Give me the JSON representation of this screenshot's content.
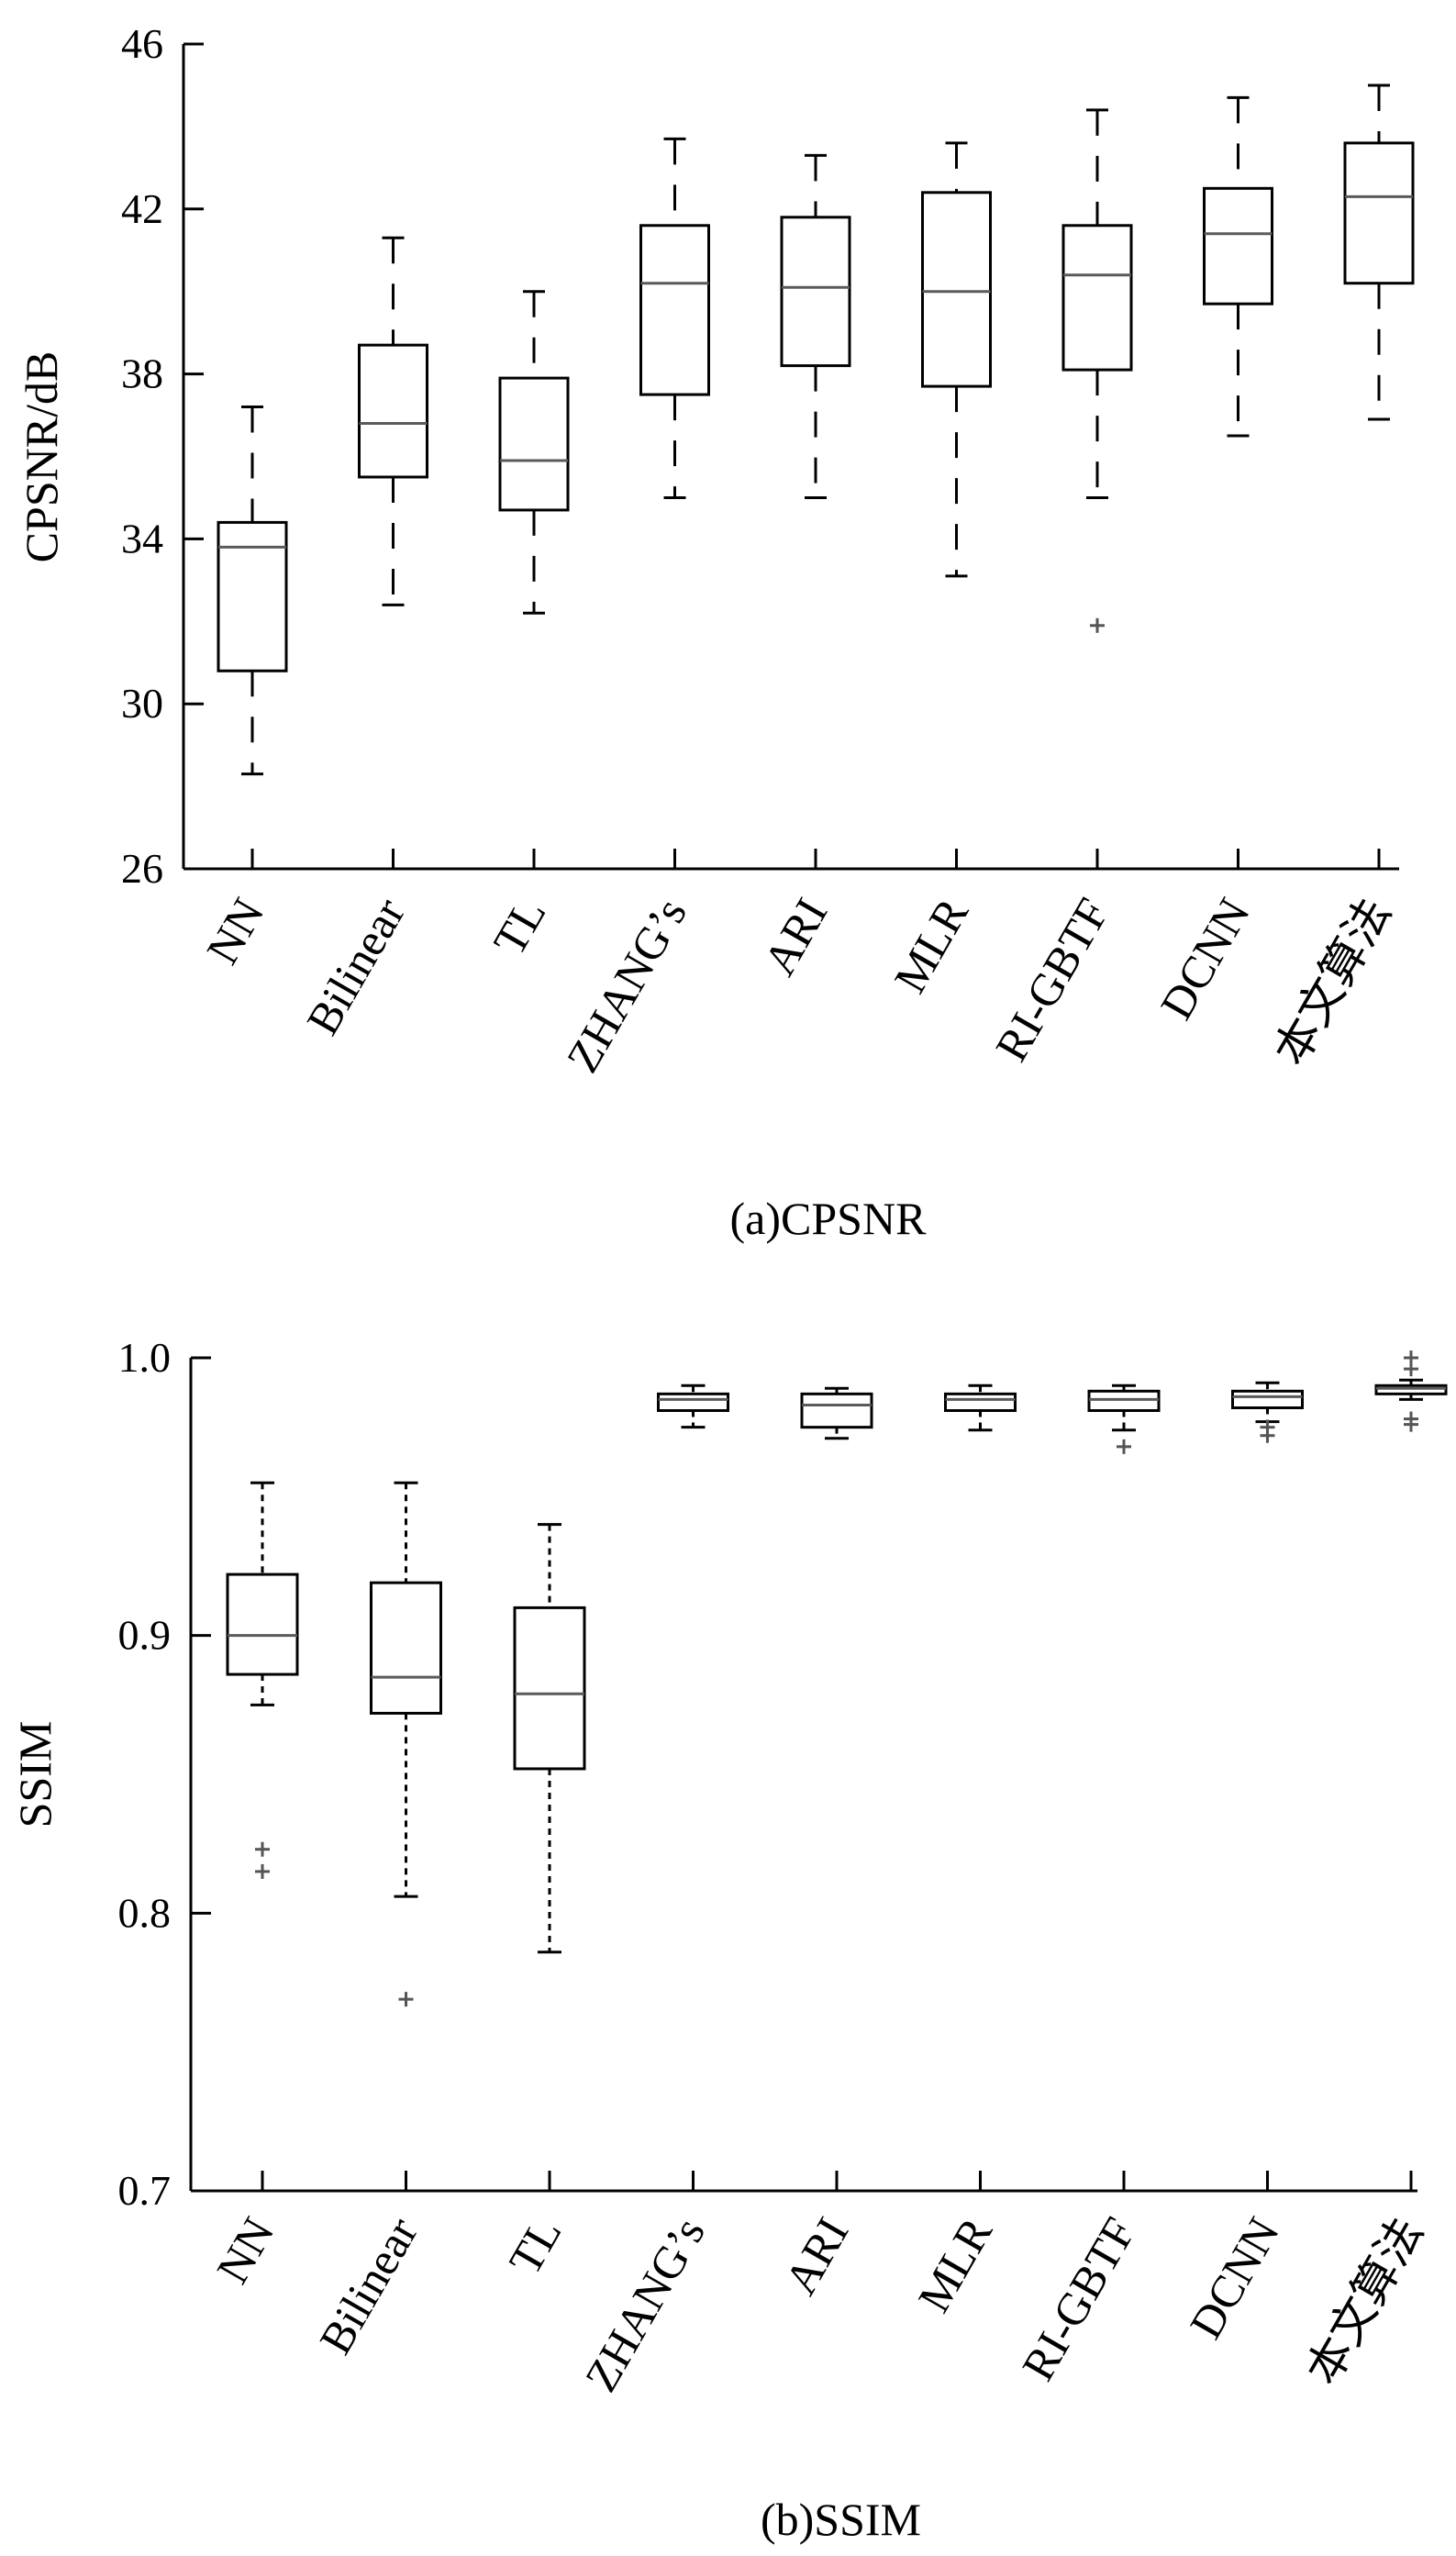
{
  "chart_data": [
    {
      "type": "boxplot",
      "caption": "(a)CPSNR",
      "ylabel": "CPSNR/dB",
      "ylim": [
        26,
        46
      ],
      "yticks": [
        26,
        30,
        34,
        38,
        42,
        46
      ],
      "whisker_style": "dashed",
      "categories": [
        "NN",
        "Bilinear",
        "TL",
        "ZHANG’s",
        "ARI",
        "MLR",
        "RI-GBTF",
        "DCNN",
        "本文算法"
      ],
      "boxes": [
        {
          "whisker_low": 28.3,
          "q1": 30.8,
          "median": 33.8,
          "q3": 34.4,
          "whisker_high": 37.2,
          "outliers": []
        },
        {
          "whisker_low": 32.4,
          "q1": 35.5,
          "median": 36.8,
          "q3": 38.7,
          "whisker_high": 41.3,
          "outliers": []
        },
        {
          "whisker_low": 32.2,
          "q1": 34.7,
          "median": 35.9,
          "q3": 37.9,
          "whisker_high": 40.0,
          "outliers": []
        },
        {
          "whisker_low": 35.0,
          "q1": 37.5,
          "median": 40.2,
          "q3": 41.6,
          "whisker_high": 43.7,
          "outliers": []
        },
        {
          "whisker_low": 35.0,
          "q1": 38.2,
          "median": 40.1,
          "q3": 41.8,
          "whisker_high": 43.3,
          "outliers": []
        },
        {
          "whisker_low": 33.1,
          "q1": 37.7,
          "median": 40.0,
          "q3": 42.4,
          "whisker_high": 43.6,
          "outliers": []
        },
        {
          "whisker_low": 35.0,
          "q1": 38.1,
          "median": 40.4,
          "q3": 41.6,
          "whisker_high": 44.4,
          "outliers": [
            31.9
          ]
        },
        {
          "whisker_low": 36.5,
          "q1": 39.7,
          "median": 41.4,
          "q3": 42.5,
          "whisker_high": 44.7,
          "outliers": []
        },
        {
          "whisker_low": 36.9,
          "q1": 40.2,
          "median": 42.3,
          "q3": 43.6,
          "whisker_high": 45.0,
          "outliers": []
        }
      ]
    },
    {
      "type": "boxplot",
      "caption": "(b)SSIM",
      "ylabel": "SSIM",
      "ylim": [
        0.7,
        1.0
      ],
      "yticks": [
        0.7,
        0.8,
        0.9,
        1.0
      ],
      "ytick_labels": [
        "0.7",
        "0.8",
        "0.9",
        "1.0"
      ],
      "whisker_style": "dotted",
      "categories": [
        "NN",
        "Bilinear",
        "TL",
        "ZHANG’s",
        "ARI",
        "MLR",
        "RI-GBTF",
        "DCNN",
        "本文算法"
      ],
      "boxes": [
        {
          "whisker_low": 0.875,
          "q1": 0.886,
          "median": 0.9,
          "q3": 0.922,
          "whisker_high": 0.955,
          "outliers": [
            0.823,
            0.815
          ]
        },
        {
          "whisker_low": 0.806,
          "q1": 0.872,
          "median": 0.885,
          "q3": 0.919,
          "whisker_high": 0.955,
          "outliers": [
            0.769
          ]
        },
        {
          "whisker_low": 0.786,
          "q1": 0.852,
          "median": 0.879,
          "q3": 0.91,
          "whisker_high": 0.94,
          "outliers": []
        },
        {
          "whisker_low": 0.975,
          "q1": 0.981,
          "median": 0.985,
          "q3": 0.987,
          "whisker_high": 0.99,
          "outliers": []
        },
        {
          "whisker_low": 0.971,
          "q1": 0.975,
          "median": 0.983,
          "q3": 0.987,
          "whisker_high": 0.989,
          "outliers": []
        },
        {
          "whisker_low": 0.974,
          "q1": 0.981,
          "median": 0.985,
          "q3": 0.987,
          "whisker_high": 0.99,
          "outliers": []
        },
        {
          "whisker_low": 0.974,
          "q1": 0.981,
          "median": 0.985,
          "q3": 0.988,
          "whisker_high": 0.99,
          "outliers": [
            0.968
          ]
        },
        {
          "whisker_low": 0.977,
          "q1": 0.982,
          "median": 0.986,
          "q3": 0.988,
          "whisker_high": 0.991,
          "outliers": [
            0.975,
            0.972
          ]
        },
        {
          "whisker_low": 0.985,
          "q1": 0.987,
          "median": 0.989,
          "q3": 0.99,
          "whisker_high": 0.992,
          "outliers": [
            0.978,
            0.976,
            0.996,
            1.0
          ]
        }
      ]
    }
  ]
}
